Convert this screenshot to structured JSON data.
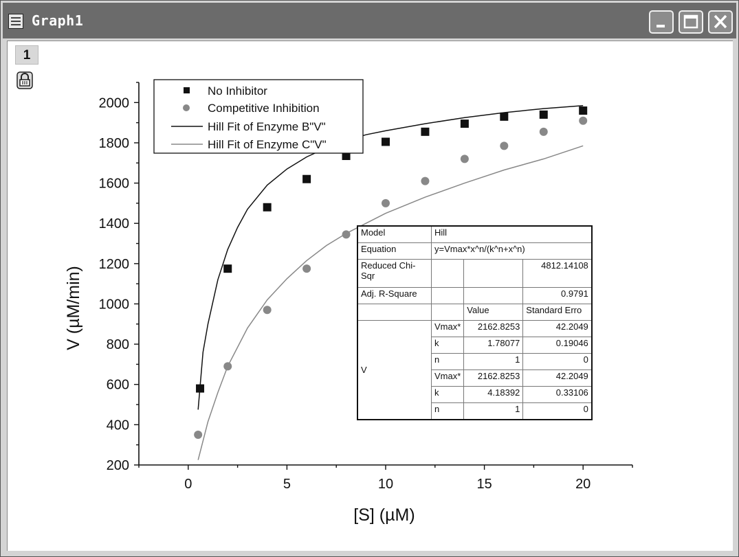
{
  "window": {
    "title": "Graph1",
    "layer_label": "1",
    "controls": [
      "minimize-icon",
      "maximize-icon",
      "close-icon"
    ]
  },
  "legend": {
    "entries": [
      {
        "label": "No Inhibitor",
        "symbol": "square",
        "color": "#111111"
      },
      {
        "label": "Competitive Inhibition",
        "symbol": "circle",
        "color": "#888888"
      },
      {
        "label": "Hill Fit of Enzyme B\"V\"",
        "symbol": "line",
        "color": "#111111"
      },
      {
        "label": "Hill Fit of Enzyme C\"V\"",
        "symbol": "line",
        "color": "#888888"
      }
    ]
  },
  "stats_table": {
    "model_label": "Model",
    "model_value": "Hill",
    "equation_label": "Equation",
    "equation_value": "y=Vmax*x^n/(k^n+x^n)",
    "chisq_label": "Reduced Chi-Sqr",
    "chisq_value": "4812.14108",
    "r2_label": "Adj. R-Square",
    "r2_value": "0.9791",
    "col_value": "Value",
    "col_error": "Standard Erro",
    "group_label": "V",
    "params": [
      {
        "name": "Vmax*",
        "value": "2162.8253",
        "error": "42.2049"
      },
      {
        "name": "k",
        "value": "1.78077",
        "error": "0.19046"
      },
      {
        "name": "n",
        "value": "1",
        "error": "0"
      },
      {
        "name": "Vmax*",
        "value": "2162.8253",
        "error": "42.2049"
      },
      {
        "name": "k",
        "value": "4.18392",
        "error": "0.33106"
      },
      {
        "name": "n",
        "value": "1",
        "error": "0"
      }
    ]
  },
  "chart_data": {
    "type": "scatter",
    "xlabel": "[S] (µM)",
    "ylabel": "V (µM/min)",
    "xlim": [
      -2.5,
      22.5
    ],
    "ylim": [
      200,
      2100
    ],
    "x_ticks": [
      0,
      5,
      10,
      15,
      20
    ],
    "y_ticks": [
      200,
      400,
      600,
      800,
      1000,
      1200,
      1400,
      1600,
      1800,
      2000
    ],
    "grid": false,
    "legend_position": "top-left",
    "series": [
      {
        "name": "No Inhibitor",
        "kind": "points",
        "marker": "square",
        "color": "#111111",
        "x": [
          0.6,
          2,
          4,
          6,
          8,
          10,
          12,
          14,
          16,
          18,
          20
        ],
        "y": [
          580,
          1175,
          1480,
          1620,
          1735,
          1805,
          1855,
          1895,
          1930,
          1940,
          1960
        ]
      },
      {
        "name": "Competitive Inhibition",
        "kind": "points",
        "marker": "circle",
        "color": "#888888",
        "x": [
          0.5,
          2,
          4,
          6,
          8,
          10,
          12,
          14,
          16,
          18,
          20
        ],
        "y": [
          350,
          690,
          970,
          1175,
          1345,
          1500,
          1610,
          1720,
          1785,
          1855,
          1910
        ]
      },
      {
        "name": "Hill Fit of Enzyme B\"V\"",
        "kind": "fit",
        "color": "#111111",
        "x": [
          0.5,
          0.75,
          1,
          1.5,
          2,
          2.5,
          3,
          4,
          5,
          6,
          7,
          8,
          9,
          10,
          12,
          14,
          16,
          18,
          20
        ],
        "y": [
          475,
          760,
          900,
          1120,
          1270,
          1380,
          1470,
          1590,
          1670,
          1730,
          1775,
          1810,
          1840,
          1860,
          1895,
          1925,
          1950,
          1970,
          1985
        ]
      },
      {
        "name": "Hill Fit of Enzyme C\"V\"",
        "kind": "fit",
        "color": "#888888",
        "x": [
          0.5,
          1,
          1.5,
          2,
          3,
          4,
          5,
          6,
          7,
          8,
          9,
          10,
          12,
          14,
          16,
          18,
          20
        ],
        "y": [
          225,
          415,
          560,
          690,
          880,
          1020,
          1125,
          1215,
          1290,
          1350,
          1400,
          1450,
          1530,
          1600,
          1665,
          1720,
          1785
        ]
      }
    ]
  }
}
